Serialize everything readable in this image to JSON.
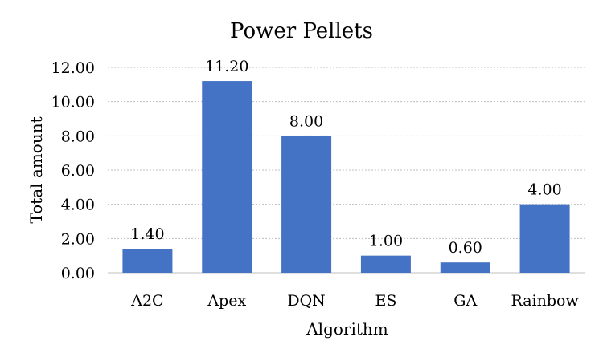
{
  "chart_data": {
    "type": "bar",
    "title": "Power Pellets",
    "xlabel": "Algorithm",
    "ylabel": "Total amount",
    "categories": [
      "A2C",
      "Apex",
      "DQN",
      "ES",
      "GA",
      "Rainbow"
    ],
    "values": [
      1.4,
      11.2,
      8.0,
      1.0,
      0.6,
      4.0
    ],
    "data_labels": [
      "1.40",
      "11.20",
      "8.00",
      "1.00",
      "0.60",
      "4.00"
    ],
    "ylim": [
      0,
      12
    ],
    "yticks": [
      "0.00",
      "2.00",
      "4.00",
      "6.00",
      "8.00",
      "10.00",
      "12.00"
    ],
    "grid": true,
    "legend": "none",
    "bar_color": "#4472c4"
  }
}
